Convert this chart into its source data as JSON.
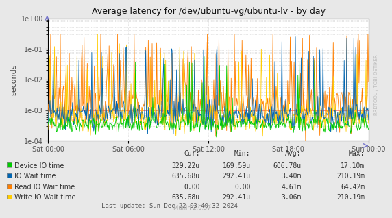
{
  "title": "Average latency for /dev/ubuntu-vg/ubuntu-lv - by day",
  "ylabel": "seconds",
  "background_color": "#E8E8E8",
  "plot_bg_color": "#FFFFFF",
  "colors": {
    "device_io": "#00CC00",
    "io_wait": "#0066B3",
    "read_io_wait": "#FF7F00",
    "write_io_wait": "#FFCC00"
  },
  "xtick_labels": [
    "Sat 00:00",
    "Sat 06:00",
    "Sat 12:00",
    "Sat 18:00",
    "Sun 00:00"
  ],
  "legend": [
    {
      "label": "Device IO time",
      "color": "#00CC00"
    },
    {
      "label": "IO Wait time",
      "color": "#0066B3"
    },
    {
      "label": "Read IO Wait time",
      "color": "#FF7F00"
    },
    {
      "label": "Write IO Wait time",
      "color": "#FFCC00"
    }
  ],
  "table_headers": [
    "Cur:",
    "Min:",
    "Avg:",
    "Max:"
  ],
  "table_rows": [
    [
      "329.22u",
      "169.59u",
      "606.78u",
      "17.10m"
    ],
    [
      "635.68u",
      "292.41u",
      "3.40m",
      "210.19m"
    ],
    [
      "0.00",
      "0.00",
      "4.61m",
      "64.42m"
    ],
    [
      "635.68u",
      "292.41u",
      "3.06m",
      "210.19m"
    ]
  ],
  "footer": "Last update: Sun Dec 22 03:40:32 2024",
  "munin_version": "Munin 2.0.57",
  "watermark": "RRDTOOL / TOBI OETIKER",
  "num_points": 500,
  "seed": 42
}
